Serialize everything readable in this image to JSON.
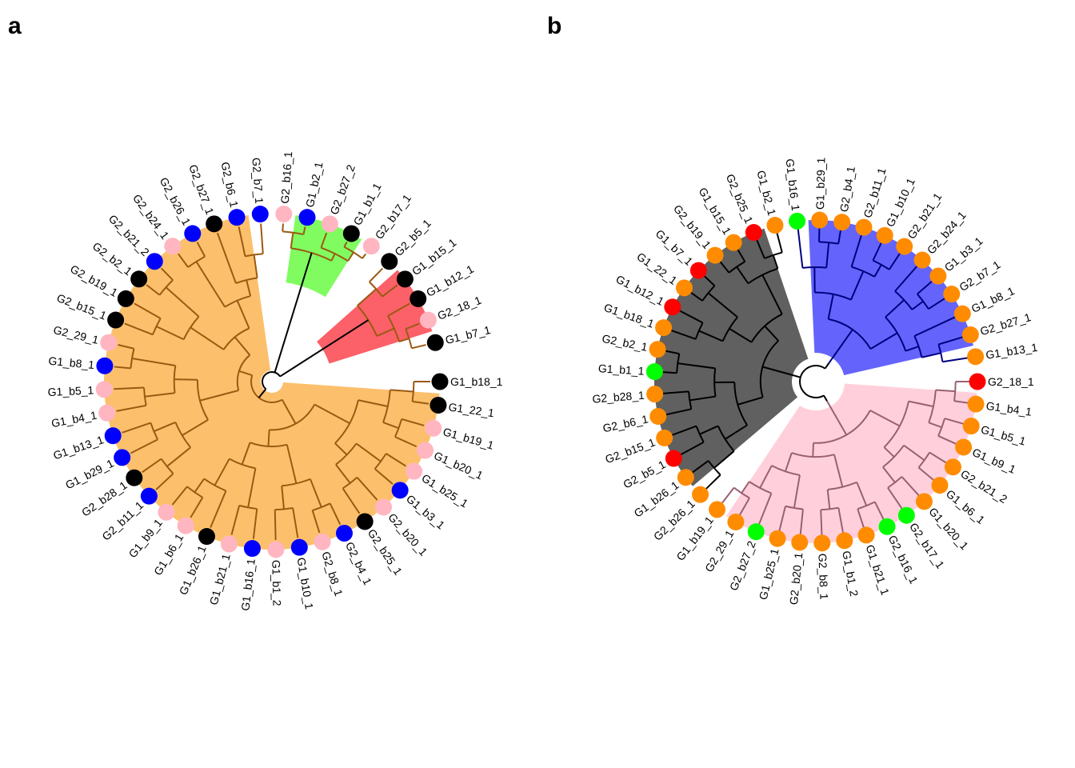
{
  "panels": [
    {
      "letter": "a",
      "tree_color": "#9a5a12",
      "root_color": "#000000",
      "clades": [
        {
          "color": "#fcc06c",
          "tips": [
            "G1_b18_1",
            "G1_22_1",
            "G1_b19_1",
            "G1_b20_1",
            "G1_b25_1",
            "G1_b3_1",
            "G2_b20_1",
            "G2_b25_1",
            "G2_b4_1",
            "G2_b8_1",
            "G1_b10_1",
            "G1_b1_2",
            "G1_b16_1",
            "G1_b21_1",
            "G1_b26_1",
            "G1_b6_1",
            "G1_b9_1",
            "G2_b11_1",
            "G2_b28_1",
            "G1_b29_1",
            "G1_b13_1",
            "G1_b4_1",
            "G1_b5_1",
            "G1_b8_1",
            "G2_29_1",
            "G2_b15_1",
            "G2_b19_1",
            "G2_b2_1",
            "G2_b21_2",
            "G2_b24_1",
            "G2_b26_1",
            "G2_b27_1",
            "G2_b6_1",
            "G2_b7_1"
          ]
        },
        {
          "color": "#80fc60",
          "tips": [
            "G2_b16_1",
            "G1_b2_1",
            "G2_b27_2",
            "G1_b1_1",
            "G2_b17_1"
          ]
        },
        {
          "color": "#fc6068",
          "tips": [
            "G2_b5_1",
            "G1_b15_1",
            "G1_b12_1",
            "G2_18_1",
            "G1_b7_1"
          ]
        }
      ],
      "tips": [
        {
          "label": "G1_b18_1",
          "color": "black"
        },
        {
          "label": "G1_22_1",
          "color": "black"
        },
        {
          "label": "G1_b19_1",
          "color": "pink"
        },
        {
          "label": "G1_b20_1",
          "color": "pink"
        },
        {
          "label": "G1_b25_1",
          "color": "pink"
        },
        {
          "label": "G1_b3_1",
          "color": "blue"
        },
        {
          "label": "G2_b20_1",
          "color": "pink"
        },
        {
          "label": "G2_b25_1",
          "color": "black"
        },
        {
          "label": "G2_b4_1",
          "color": "blue"
        },
        {
          "label": "G2_b8_1",
          "color": "pink"
        },
        {
          "label": "G1_b10_1",
          "color": "blue"
        },
        {
          "label": "G1_b1_2",
          "color": "pink"
        },
        {
          "label": "G1_b16_1",
          "color": "blue"
        },
        {
          "label": "G1_b21_1",
          "color": "pink"
        },
        {
          "label": "G1_b26_1",
          "color": "black"
        },
        {
          "label": "G1_b6_1",
          "color": "pink"
        },
        {
          "label": "G1_b9_1",
          "color": "pink"
        },
        {
          "label": "G2_b11_1",
          "color": "blue"
        },
        {
          "label": "G2_b28_1",
          "color": "black"
        },
        {
          "label": "G1_b29_1",
          "color": "blue"
        },
        {
          "label": "G1_b13_1",
          "color": "blue"
        },
        {
          "label": "G1_b4_1",
          "color": "pink"
        },
        {
          "label": "G1_b5_1",
          "color": "pink"
        },
        {
          "label": "G1_b8_1",
          "color": "blue"
        },
        {
          "label": "G2_29_1",
          "color": "pink"
        },
        {
          "label": "G2_b15_1",
          "color": "black"
        },
        {
          "label": "G2_b19_1",
          "color": "black"
        },
        {
          "label": "G2_b2_1",
          "color": "black"
        },
        {
          "label": "G2_b21_2",
          "color": "blue"
        },
        {
          "label": "G2_b24_1",
          "color": "pink"
        },
        {
          "label": "G2_b26_1",
          "color": "blue"
        },
        {
          "label": "G2_b27_1",
          "color": "black"
        },
        {
          "label": "G2_b6_1",
          "color": "blue"
        },
        {
          "label": "G2_b7_1",
          "color": "blue"
        },
        {
          "label": "G2_b16_1",
          "color": "pink"
        },
        {
          "label": "G1_b2_1",
          "color": "blue"
        },
        {
          "label": "G2_b27_2",
          "color": "pink"
        },
        {
          "label": "G1_b1_1",
          "color": "black"
        },
        {
          "label": "G2_b17_1",
          "color": "pink"
        },
        {
          "label": "G2_b5_1",
          "color": "black"
        },
        {
          "label": "G1_b15_1",
          "color": "black"
        },
        {
          "label": "G1_b12_1",
          "color": "black"
        },
        {
          "label": "G2_18_1",
          "color": "pink"
        },
        {
          "label": "G1_b7_1",
          "color": "black"
        }
      ]
    },
    {
      "letter": "b",
      "tree_color": "#000000",
      "root_color": "#000000",
      "clades": [
        {
          "color": "#ffd0dc",
          "line": "#9a6070",
          "tips": [
            "G2_18_1",
            "G1_b4_1",
            "G1_b5_1",
            "G1_b9_1",
            "G2_b21_2",
            "G1_b6_1",
            "G1_b20_1",
            "G2_b17_1",
            "G2_b16_1",
            "G1_b21_1",
            "G1_b1_2",
            "G2_b8_1",
            "G2_b20_1",
            "G1_b25_1",
            "G2_b27_2",
            "G2_29_1",
            "G1_b19_1"
          ]
        },
        {
          "color": "#606060",
          "line": "#000000",
          "tips": [
            "G2_b26_1",
            "G1_b26_1",
            "G2_b5_1",
            "G2_b15_1",
            "G2_b6_1",
            "G2_b28_1",
            "G1_b1_1",
            "G2_b2_1",
            "G1_b18_1",
            "G1_b12_1",
            "G1_22_1",
            "G1_b7_1",
            "G2_b19_1",
            "G1_b15_1",
            "G2_b25_1",
            "G1_b2_1"
          ]
        },
        {
          "color": "#6464fc",
          "line": "#000080",
          "tips": [
            "G1_b16_1",
            "G1_b29_1",
            "G2_b4_1",
            "G2_b11_1",
            "G1_b10_1",
            "G2_b21_1",
            "G2_b24_1",
            "G1_b3_1",
            "G2_b7_1",
            "G1_b8_1",
            "G2_b27_1",
            "G1_b13_1"
          ]
        }
      ],
      "tips": [
        {
          "label": "G2_18_1",
          "color": "red"
        },
        {
          "label": "G1_b4_1",
          "color": "orange"
        },
        {
          "label": "G1_b5_1",
          "color": "orange"
        },
        {
          "label": "G1_b9_1",
          "color": "orange"
        },
        {
          "label": "G2_b21_2",
          "color": "orange"
        },
        {
          "label": "G1_b6_1",
          "color": "orange"
        },
        {
          "label": "G1_b20_1",
          "color": "orange"
        },
        {
          "label": "G2_b17_1",
          "color": "green"
        },
        {
          "label": "G2_b16_1",
          "color": "green"
        },
        {
          "label": "G1_b21_1",
          "color": "orange"
        },
        {
          "label": "G1_b1_2",
          "color": "orange"
        },
        {
          "label": "G2_b8_1",
          "color": "orange"
        },
        {
          "label": "G2_b20_1",
          "color": "orange"
        },
        {
          "label": "G1_b25_1",
          "color": "orange"
        },
        {
          "label": "G2_b27_2",
          "color": "green"
        },
        {
          "label": "G2_29_1",
          "color": "orange"
        },
        {
          "label": "G1_b19_1",
          "color": "orange"
        },
        {
          "label": "G2_b26_1",
          "color": "orange"
        },
        {
          "label": "G1_b26_1",
          "color": "orange"
        },
        {
          "label": "G2_b5_1",
          "color": "red"
        },
        {
          "label": "G2_b15_1",
          "color": "orange"
        },
        {
          "label": "G2_b6_1",
          "color": "orange"
        },
        {
          "label": "G2_b28_1",
          "color": "orange"
        },
        {
          "label": "G1_b1_1",
          "color": "green"
        },
        {
          "label": "G2_b2_1",
          "color": "orange"
        },
        {
          "label": "G1_b18_1",
          "color": "orange"
        },
        {
          "label": "G1_b12_1",
          "color": "red"
        },
        {
          "label": "G1_22_1",
          "color": "orange"
        },
        {
          "label": "G1_b7_1",
          "color": "red"
        },
        {
          "label": "G2_b19_1",
          "color": "orange"
        },
        {
          "label": "G1_b15_1",
          "color": "orange"
        },
        {
          "label": "G2_b25_1",
          "color": "red"
        },
        {
          "label": "G1_b2_1",
          "color": "orange"
        },
        {
          "label": "G1_b16_1",
          "color": "green"
        },
        {
          "label": "G1_b29_1",
          "color": "orange"
        },
        {
          "label": "G2_b4_1",
          "color": "orange"
        },
        {
          "label": "G2_b11_1",
          "color": "orange"
        },
        {
          "label": "G1_b10_1",
          "color": "orange"
        },
        {
          "label": "G2_b21_1",
          "color": "orange"
        },
        {
          "label": "G2_b24_1",
          "color": "orange"
        },
        {
          "label": "G1_b3_1",
          "color": "orange"
        },
        {
          "label": "G2_b7_1",
          "color": "orange"
        },
        {
          "label": "G1_b8_1",
          "color": "orange"
        },
        {
          "label": "G2_b27_1",
          "color": "orange"
        },
        {
          "label": "G1_b13_1",
          "color": "orange"
        }
      ]
    }
  ],
  "point_colors": {
    "black": "#000000",
    "pink": "#ffb6c1",
    "blue": "#0000ff",
    "red": "#ff0000",
    "orange": "#ff8c00",
    "green": "#00ff00"
  }
}
